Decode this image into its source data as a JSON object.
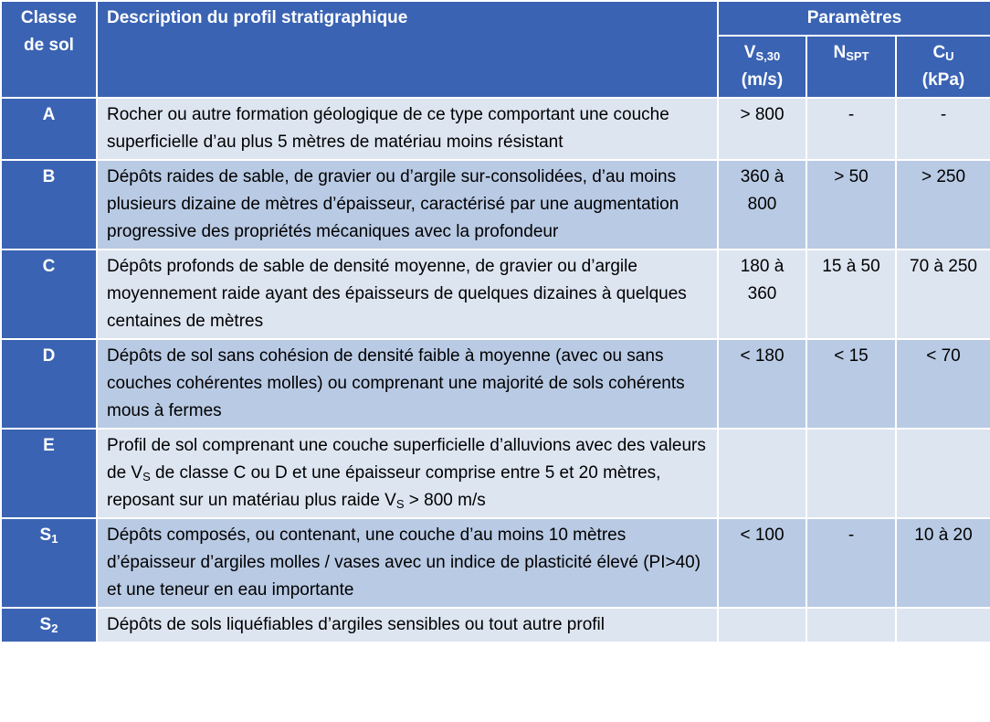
{
  "header": {
    "class_label": "Classe de sol",
    "description_label": "Description du profil stratigraphique",
    "parameters_label": "Paramètres",
    "columns": [
      {
        "main": "V",
        "sub": "S,30",
        "unit": "(m/s)"
      },
      {
        "main": "N",
        "sub": "SPT"
      },
      {
        "main": "C",
        "sub": "U",
        "unit": "(kPa)"
      }
    ]
  },
  "rows": [
    {
      "class": {
        "main": "A"
      },
      "description": [
        {
          "text": "Rocher ou autre formation géologique de ce type comportant une couche superficielle d’au plus 5 mètres de matériau moins résistant"
        }
      ],
      "params": [
        "> 800",
        "-",
        "-"
      ]
    },
    {
      "class": {
        "main": "B"
      },
      "description": [
        {
          "text": "Dépôts raides de sable, de gravier ou d’argile sur-consolidées, d’au moins plusieurs dizaine de mètres d’épaisseur, caractérisé par une augmentation progressive des propriétés mécaniques avec la profondeur"
        }
      ],
      "params": [
        "360 à 800",
        "> 50",
        "> 250"
      ]
    },
    {
      "class": {
        "main": "C"
      },
      "description": [
        {
          "text": "Dépôts profonds de sable de densité moyenne, de gravier ou d’argile moyennement raide ayant des épaisseurs de quelques dizaines à quelques centaines de mètres"
        }
      ],
      "params": [
        "180 à 360",
        "15 à 50",
        "70 à 250"
      ]
    },
    {
      "class": {
        "main": "D"
      },
      "description": [
        {
          "text": "Dépôts de sol sans cohésion de densité faible à moyenne (avec ou sans couches cohérentes molles) ou comprenant une majorité de sols cohérents mous à fermes"
        }
      ],
      "params": [
        "< 180",
        "< 15",
        "< 70"
      ]
    },
    {
      "class": {
        "main": "E"
      },
      "description": [
        {
          "text": "Profil de sol comprenant une couche superficielle d’alluvions avec des valeurs de V"
        },
        {
          "sub": "S"
        },
        {
          "text": " de classe C ou D et une épaisseur comprise entre 5 et 20 mètres, reposant sur un matériau plus raide V"
        },
        {
          "sub": "S"
        },
        {
          "text": " > 800 m/s"
        }
      ],
      "params": [
        null,
        null,
        null
      ]
    },
    {
      "class": {
        "main": "S",
        "sub": "1"
      },
      "description": [
        {
          "text": "Dépôts composés, ou contenant, une couche d’au moins 10 mètres d’épaisseur d’argiles molles / vases avec un indice de plasticité élevé (PI>40) et une teneur en eau importante"
        }
      ],
      "params": [
        "< 100",
        "-",
        "10 à 20"
      ]
    },
    {
      "class": {
        "main": "S",
        "sub": "2"
      },
      "description": [
        {
          "text": "Dépôts de sols liquéfiables d’argiles sensibles ou tout autre profil"
        }
      ],
      "params": [
        null,
        null,
        null
      ]
    }
  ]
}
